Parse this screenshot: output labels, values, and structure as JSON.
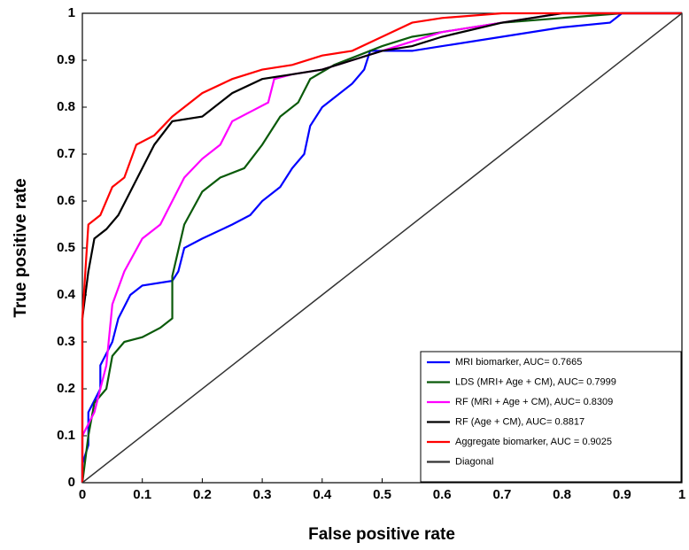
{
  "chart_data": {
    "type": "line",
    "xlabel": "False positive rate",
    "ylabel": "True positive rate",
    "xlim": [
      0,
      1
    ],
    "ylim": [
      0,
      1
    ],
    "xticks": [
      0,
      0.1,
      0.2,
      0.3,
      0.4,
      0.5,
      0.6,
      0.7,
      0.8,
      0.9,
      1
    ],
    "yticks": [
      0,
      0.1,
      0.2,
      0.3,
      0.4,
      0.5,
      0.6,
      0.7,
      0.8,
      0.9,
      1
    ],
    "grid": false,
    "legend": "lower right",
    "series": [
      {
        "name": "MRI biomarker, AUC= 0.7665",
        "color": "#0000ff",
        "x": [
          0,
          0,
          0.01,
          0.01,
          0.03,
          0.03,
          0.05,
          0.06,
          0.08,
          0.1,
          0.15,
          0.16,
          0.17,
          0.2,
          0.25,
          0.28,
          0.3,
          0.33,
          0.35,
          0.37,
          0.38,
          0.4,
          0.42,
          0.45,
          0.47,
          0.48,
          0.55,
          0.6,
          0.7,
          0.8,
          0.88,
          0.9,
          1
        ],
        "values": [
          0,
          0.04,
          0.08,
          0.15,
          0.2,
          0.25,
          0.3,
          0.35,
          0.4,
          0.42,
          0.43,
          0.45,
          0.5,
          0.52,
          0.55,
          0.57,
          0.6,
          0.63,
          0.67,
          0.7,
          0.76,
          0.8,
          0.82,
          0.85,
          0.88,
          0.92,
          0.92,
          0.93,
          0.95,
          0.97,
          0.98,
          1,
          1
        ]
      },
      {
        "name": "LDS (MRI+ Age + CM), AUC= 0.7999",
        "color": "#0a5a0a",
        "x": [
          0,
          0.01,
          0.02,
          0.04,
          0.05,
          0.07,
          0.1,
          0.13,
          0.15,
          0.15,
          0.17,
          0.2,
          0.23,
          0.27,
          0.3,
          0.33,
          0.36,
          0.38,
          0.42,
          0.46,
          0.5,
          0.55,
          0.6,
          0.7,
          0.8,
          0.9,
          1
        ],
        "values": [
          0,
          0.1,
          0.17,
          0.2,
          0.27,
          0.3,
          0.31,
          0.33,
          0.35,
          0.44,
          0.55,
          0.62,
          0.65,
          0.67,
          0.72,
          0.78,
          0.81,
          0.86,
          0.89,
          0.91,
          0.93,
          0.95,
          0.96,
          0.98,
          0.99,
          1,
          1
        ]
      },
      {
        "name": "RF (MRI + Age + CM), AUC= 0.8309",
        "color": "#ff00ff",
        "x": [
          0,
          0,
          0.02,
          0.04,
          0.05,
          0.07,
          0.1,
          0.13,
          0.15,
          0.17,
          0.2,
          0.23,
          0.25,
          0.28,
          0.31,
          0.32,
          0.35,
          0.4,
          0.45,
          0.5,
          0.55,
          0.6,
          0.7,
          0.8,
          1
        ],
        "values": [
          0,
          0.1,
          0.15,
          0.25,
          0.38,
          0.45,
          0.52,
          0.55,
          0.6,
          0.65,
          0.69,
          0.72,
          0.77,
          0.79,
          0.81,
          0.86,
          0.87,
          0.88,
          0.9,
          0.92,
          0.94,
          0.96,
          0.98,
          1,
          1
        ]
      },
      {
        "name": "RF (Age + CM), AUC= 0.8817",
        "color": "#000000",
        "x": [
          0,
          0,
          0.01,
          0.02,
          0.04,
          0.06,
          0.08,
          0.1,
          0.12,
          0.15,
          0.2,
          0.25,
          0.3,
          0.35,
          0.4,
          0.45,
          0.5,
          0.55,
          0.6,
          0.7,
          0.8,
          1
        ],
        "values": [
          0,
          0.35,
          0.45,
          0.52,
          0.54,
          0.57,
          0.62,
          0.67,
          0.72,
          0.77,
          0.78,
          0.83,
          0.86,
          0.87,
          0.88,
          0.9,
          0.92,
          0.93,
          0.95,
          0.98,
          1,
          1
        ]
      },
      {
        "name": "Aggregate biomarker, AUC = 0.9025",
        "color": "#ff0000",
        "x": [
          0,
          0,
          0.01,
          0.03,
          0.05,
          0.07,
          0.09,
          0.12,
          0.15,
          0.2,
          0.25,
          0.3,
          0.35,
          0.4,
          0.45,
          0.5,
          0.55,
          0.6,
          0.7,
          1
        ],
        "values": [
          0,
          0.35,
          0.55,
          0.57,
          0.63,
          0.65,
          0.72,
          0.74,
          0.78,
          0.83,
          0.86,
          0.88,
          0.89,
          0.91,
          0.92,
          0.95,
          0.98,
          0.99,
          1,
          1
        ]
      },
      {
        "name": "Diagonal",
        "color": "#333333",
        "x": [
          0,
          1
        ],
        "values": [
          0,
          1
        ]
      }
    ]
  }
}
